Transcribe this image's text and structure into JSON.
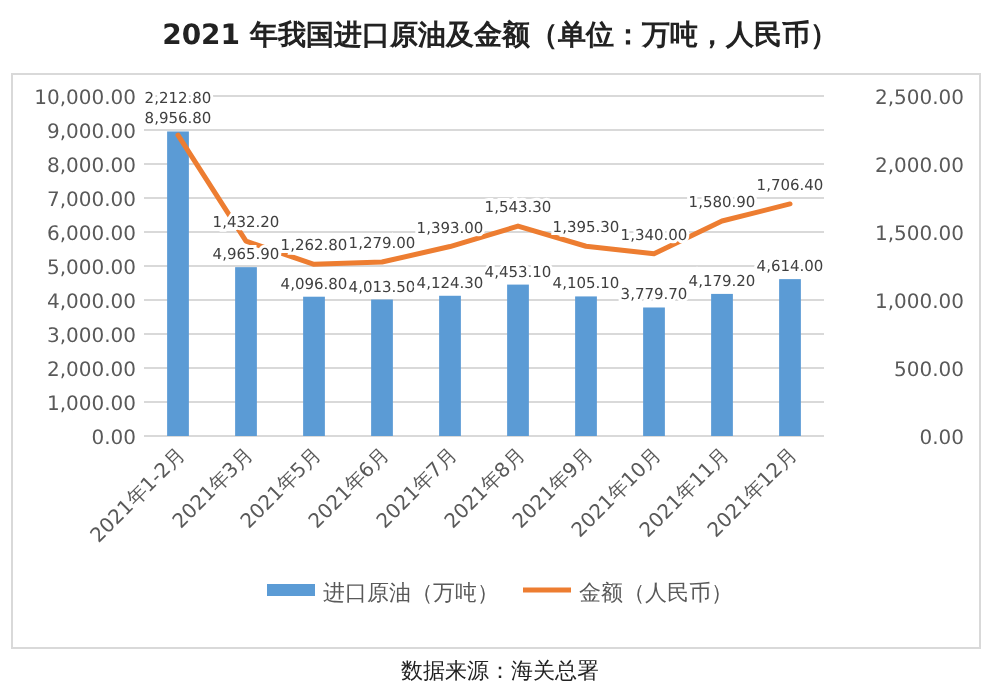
{
  "chart_data": {
    "type": "bar",
    "title": "2021 年我国进口原油及金额（单位：万吨，人民币）",
    "categories": [
      "2021年1-2月",
      "2021年3月",
      "2021年5月",
      "2021年6月",
      "2021年7月",
      "2021年8月",
      "2021年9月",
      "2021年10月",
      "2021年11月",
      "2021年12月"
    ],
    "series": [
      {
        "name": "进口原油（万吨）",
        "color": "#5b9bd5",
        "values": [
          8956.8,
          4965.9,
          4096.8,
          4013.5,
          4124.3,
          4453.1,
          4105.1,
          3779.7,
          4179.2,
          4614.0
        ],
        "value_labels": [
          "8,956.80",
          "4,965.90",
          "4,096.80",
          "4,013.50",
          "4,124.30",
          "4,453.10",
          "4,105.10",
          "3,779.70",
          "4,179.20",
          "4,614.00"
        ]
      },
      {
        "name": "金额（人民币）",
        "type": "line",
        "axis": "y2",
        "color": "#ed7d31",
        "values": [
          2212.8,
          1432.2,
          1262.8,
          1279.0,
          1393.0,
          1543.3,
          1395.3,
          1340.0,
          1580.9,
          1706.4
        ],
        "value_labels": [
          "2,212.80",
          "1,432.20",
          "1,262.80",
          "1,279.00",
          "1,393.00",
          "1,543.30",
          "1,395.30",
          "1,340.00",
          "1,580.90",
          "1,706.40"
        ]
      }
    ],
    "ylim": [
      0,
      10000
    ],
    "yticks": [
      {
        "value": 0,
        "label": "0.00"
      },
      {
        "value": 1000,
        "label": "1,000.00"
      },
      {
        "value": 2000,
        "label": "2,000.00"
      },
      {
        "value": 3000,
        "label": "3,000.00"
      },
      {
        "value": 4000,
        "label": "4,000.00"
      },
      {
        "value": 5000,
        "label": "5,000.00"
      },
      {
        "value": 6000,
        "label": "6,000.00"
      },
      {
        "value": 7000,
        "label": "7,000.00"
      },
      {
        "value": 8000,
        "label": "8,000.00"
      },
      {
        "value": 9000,
        "label": "9,000.00"
      },
      {
        "value": 10000,
        "label": "10,000.00"
      }
    ],
    "y2lim": [
      0,
      2500
    ],
    "y2ticks": [
      {
        "value": 0,
        "label": "0.00"
      },
      {
        "value": 500,
        "label": "500.00"
      },
      {
        "value": 1000,
        "label": "1,000.00"
      },
      {
        "value": 1500,
        "label": "1,500.00"
      },
      {
        "value": 2000,
        "label": "2,000.00"
      },
      {
        "value": 2500,
        "label": "2,500.00"
      }
    ],
    "grid": "y",
    "legend": "bottom",
    "marker": "none",
    "line_style": "solid",
    "annotations": [
      "数据来源：海关总署"
    ]
  }
}
